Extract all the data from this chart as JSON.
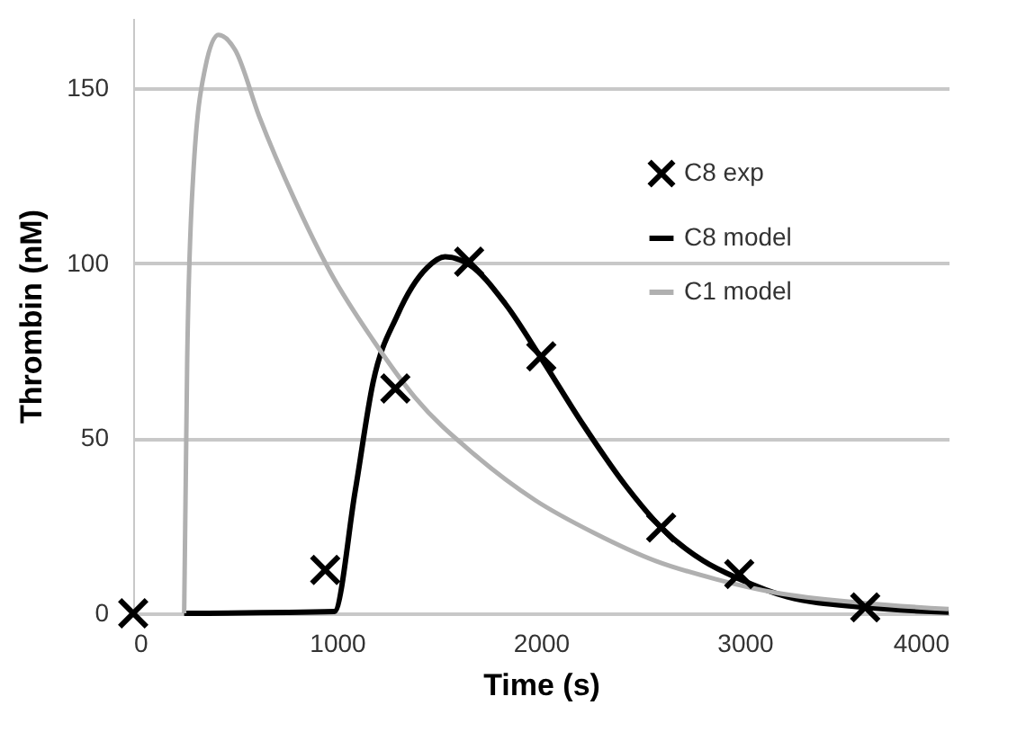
{
  "chart_data": {
    "type": "line",
    "xlabel": "Time (s)",
    "ylabel": "Thrombin (nM)",
    "xlim": [
      0,
      4000
    ],
    "xticks": [
      0,
      1000,
      2000,
      3000,
      4000
    ],
    "ylim": [
      0,
      170
    ],
    "yticks": [
      0,
      50,
      100,
      150
    ],
    "grid": "y",
    "legend": "top right",
    "line_style": "solid",
    "series": [
      {
        "name": "C8 exp",
        "type": "scatter",
        "marker": "cross",
        "color": "#000000",
        "x": [
          0,
          942,
          1286,
          1648,
          2002,
          2590,
          2973,
          3591
        ],
        "values": [
          0,
          12.4,
          64.2,
          100.4,
          73.4,
          24.5,
          11.2,
          1.7
        ]
      },
      {
        "name": "C8 model",
        "color": "#000000",
        "x": [
          250,
          986,
          1089,
          1177,
          1295,
          1442,
          1530,
          1648,
          1825,
          2002,
          2208,
          2414,
          2590,
          2796,
          2973,
          3208,
          3591,
          4000
        ],
        "values": [
          0,
          0.5,
          34.9,
          66,
          85,
          98.7,
          101.8,
          99.6,
          88.4,
          72.8,
          53.8,
          36.6,
          24.5,
          15,
          9.8,
          4.7,
          1.7,
          0.3
        ]
      },
      {
        "name": "C1 model",
        "color": "#b0b0b0",
        "x": [
          250,
          265,
          294,
          353,
          418,
          500,
          618,
          795,
          971,
          1177,
          1383,
          1677,
          1972,
          2266,
          2561,
          2855,
          3149,
          3591,
          4000
        ],
        "values": [
          0,
          72.8,
          124.6,
          155.7,
          165.2,
          160.9,
          141.9,
          117.7,
          97,
          78,
          61.6,
          45.2,
          32.3,
          22.8,
          15,
          9.8,
          5.9,
          2.9,
          1.2
        ]
      }
    ]
  }
}
